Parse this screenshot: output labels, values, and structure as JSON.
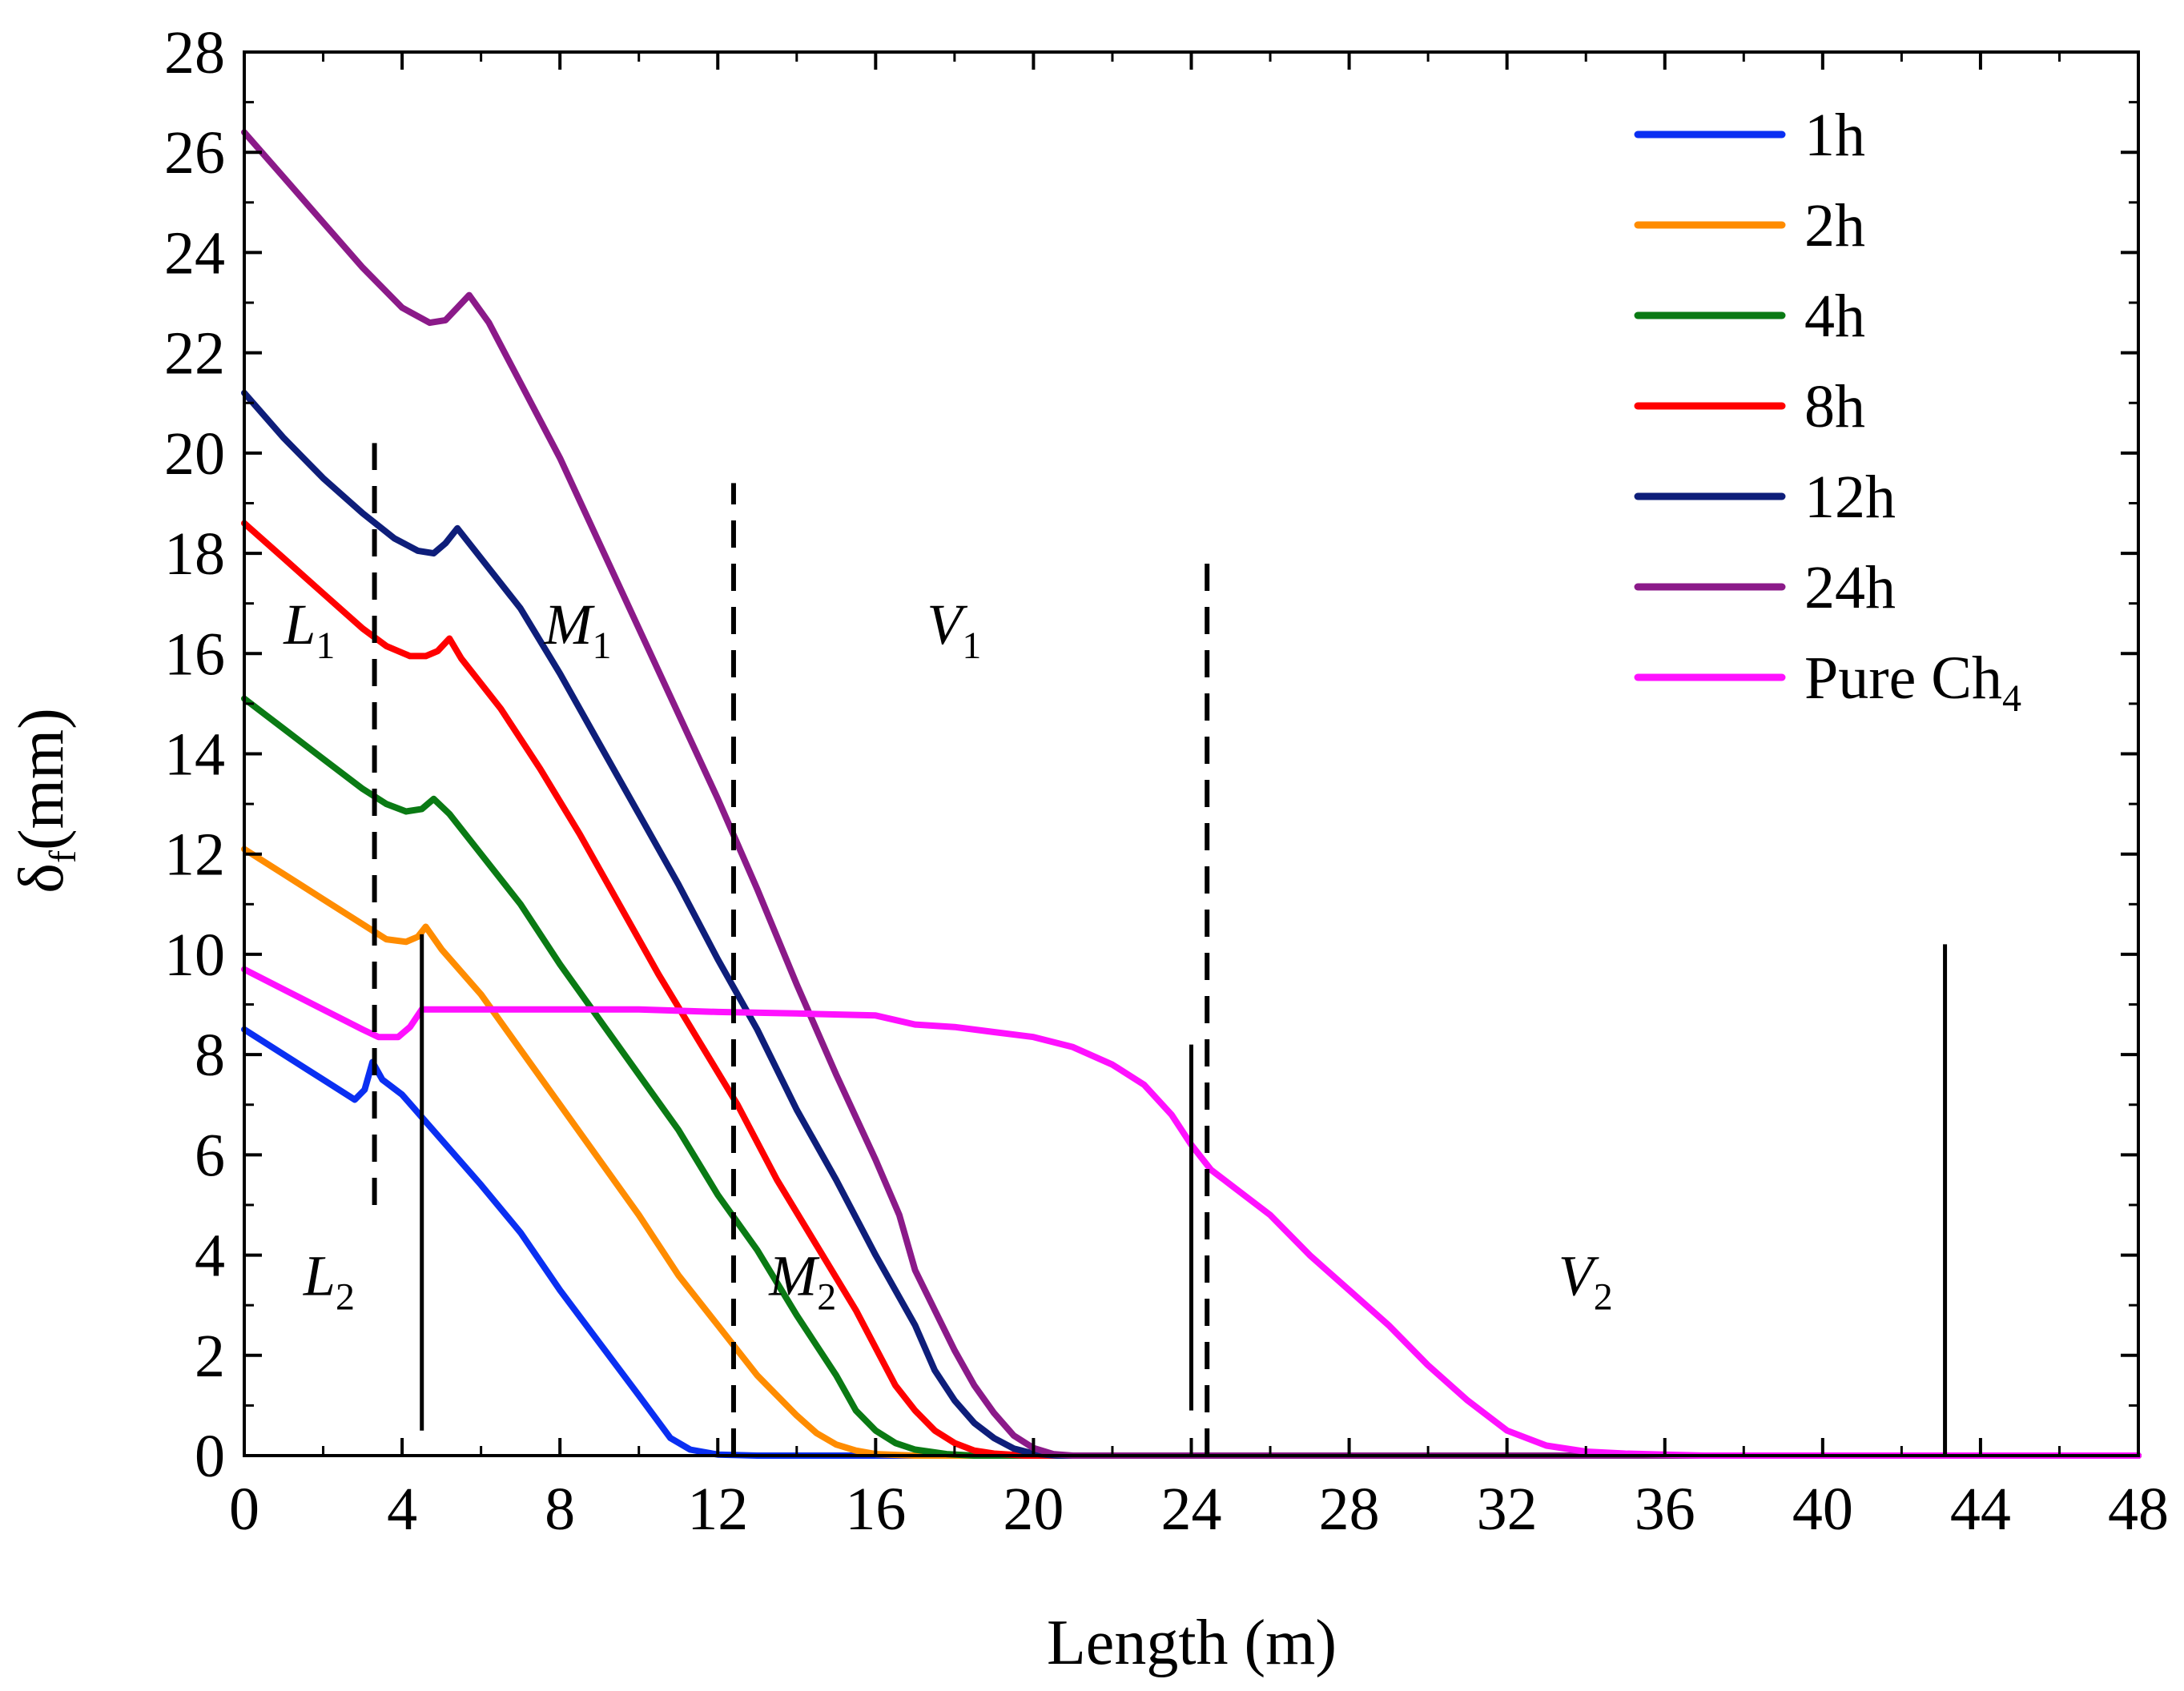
{
  "chart_data": {
    "type": "line",
    "title": "",
    "xlabel": "Length (m)",
    "ylabel_main": "δ",
    "ylabel_sub": "f",
    "ylabel_unit": "(mm)",
    "xlim": [
      0,
      48
    ],
    "ylim": [
      0,
      28
    ],
    "xticks": [
      0,
      4,
      8,
      12,
      16,
      20,
      24,
      28,
      32,
      36,
      40,
      44,
      48
    ],
    "yticks": [
      0,
      2,
      4,
      6,
      8,
      10,
      12,
      14,
      16,
      18,
      20,
      22,
      24,
      26,
      28
    ],
    "grid": false,
    "legend_position": "top-right",
    "series": [
      {
        "name": "1h",
        "label_main": "1h",
        "label_sub": "",
        "color": "#0a2ff2",
        "points": [
          [
            0,
            8.5
          ],
          [
            1,
            8.0
          ],
          [
            2,
            7.5
          ],
          [
            2.8,
            7.1
          ],
          [
            3.05,
            7.3
          ],
          [
            3.25,
            7.85
          ],
          [
            3.5,
            7.5
          ],
          [
            4,
            7.2
          ],
          [
            5,
            6.3
          ],
          [
            6,
            5.4
          ],
          [
            7,
            4.45
          ],
          [
            8,
            3.3
          ],
          [
            9,
            2.25
          ],
          [
            10,
            1.2
          ],
          [
            10.8,
            0.35
          ],
          [
            11.3,
            0.12
          ],
          [
            12,
            0.02
          ],
          [
            13,
            0
          ],
          [
            16,
            0
          ],
          [
            48,
            0
          ]
        ]
      },
      {
        "name": "2h",
        "label_main": "2h",
        "label_sub": "",
        "color": "#ff8c00",
        "points": [
          [
            0,
            12.1
          ],
          [
            1,
            11.6
          ],
          [
            2,
            11.1
          ],
          [
            3,
            10.6
          ],
          [
            3.6,
            10.3
          ],
          [
            4.1,
            10.25
          ],
          [
            4.4,
            10.35
          ],
          [
            4.6,
            10.55
          ],
          [
            5,
            10.1
          ],
          [
            6,
            9.2
          ],
          [
            7,
            8.1
          ],
          [
            8,
            7.0
          ],
          [
            9,
            5.9
          ],
          [
            10,
            4.8
          ],
          [
            11,
            3.6
          ],
          [
            12,
            2.6
          ],
          [
            13,
            1.6
          ],
          [
            14,
            0.8
          ],
          [
            14.5,
            0.45
          ],
          [
            15,
            0.22
          ],
          [
            15.5,
            0.1
          ],
          [
            16,
            0.03
          ],
          [
            17,
            0
          ],
          [
            48,
            0
          ]
        ]
      },
      {
        "name": "4h",
        "label_main": "4h",
        "label_sub": "",
        "color": "#0a7a14",
        "points": [
          [
            0,
            15.1
          ],
          [
            1,
            14.5
          ],
          [
            2,
            13.9
          ],
          [
            3,
            13.3
          ],
          [
            3.6,
            13.0
          ],
          [
            4.1,
            12.85
          ],
          [
            4.5,
            12.9
          ],
          [
            4.8,
            13.1
          ],
          [
            5.2,
            12.8
          ],
          [
            6,
            12.0
          ],
          [
            7,
            11.0
          ],
          [
            8,
            9.8
          ],
          [
            9,
            8.7
          ],
          [
            10,
            7.6
          ],
          [
            11,
            6.5
          ],
          [
            12,
            5.2
          ],
          [
            13,
            4.1
          ],
          [
            14,
            2.8
          ],
          [
            15,
            1.6
          ],
          [
            15.5,
            0.9
          ],
          [
            16,
            0.5
          ],
          [
            16.5,
            0.25
          ],
          [
            17,
            0.12
          ],
          [
            17.8,
            0.03
          ],
          [
            18.5,
            0
          ],
          [
            48,
            0
          ]
        ]
      },
      {
        "name": "8h",
        "label_main": "8h",
        "label_sub": "",
        "color": "#ff0000",
        "points": [
          [
            0,
            18.6
          ],
          [
            1,
            17.9
          ],
          [
            2,
            17.2
          ],
          [
            3,
            16.5
          ],
          [
            3.6,
            16.15
          ],
          [
            4.2,
            15.95
          ],
          [
            4.6,
            15.95
          ],
          [
            4.9,
            16.05
          ],
          [
            5.2,
            16.3
          ],
          [
            5.5,
            15.9
          ],
          [
            6.5,
            14.9
          ],
          [
            7.5,
            13.7
          ],
          [
            8.5,
            12.4
          ],
          [
            9.5,
            11.0
          ],
          [
            10.5,
            9.6
          ],
          [
            11.5,
            8.3
          ],
          [
            12.5,
            7.0
          ],
          [
            13.5,
            5.5
          ],
          [
            14.5,
            4.2
          ],
          [
            15.5,
            2.9
          ],
          [
            16.5,
            1.4
          ],
          [
            17,
            0.9
          ],
          [
            17.5,
            0.5
          ],
          [
            18,
            0.25
          ],
          [
            18.5,
            0.1
          ],
          [
            19,
            0.04
          ],
          [
            19.8,
            0
          ],
          [
            48,
            0
          ]
        ]
      },
      {
        "name": "12h",
        "label_main": "12h",
        "label_sub": "",
        "color": "#0e1e7a",
        "points": [
          [
            0,
            21.2
          ],
          [
            1,
            20.3
          ],
          [
            2,
            19.5
          ],
          [
            3,
            18.8
          ],
          [
            3.8,
            18.3
          ],
          [
            4.4,
            18.05
          ],
          [
            4.8,
            18.0
          ],
          [
            5.1,
            18.2
          ],
          [
            5.4,
            18.5
          ],
          [
            5.8,
            18.1
          ],
          [
            7,
            16.9
          ],
          [
            8,
            15.6
          ],
          [
            9,
            14.2
          ],
          [
            10,
            12.8
          ],
          [
            11,
            11.4
          ],
          [
            12,
            9.9
          ],
          [
            13,
            8.5
          ],
          [
            14,
            6.9
          ],
          [
            15,
            5.5
          ],
          [
            16,
            4.0
          ],
          [
            17,
            2.6
          ],
          [
            17.5,
            1.7
          ],
          [
            18,
            1.1
          ],
          [
            18.5,
            0.65
          ],
          [
            19,
            0.35
          ],
          [
            19.5,
            0.14
          ],
          [
            20,
            0.04
          ],
          [
            20.6,
            0
          ],
          [
            48,
            0
          ]
        ]
      },
      {
        "name": "24h",
        "label_main": "24h",
        "label_sub": "",
        "color": "#8b1a89",
        "points": [
          [
            0,
            26.4
          ],
          [
            1,
            25.5
          ],
          [
            2,
            24.6
          ],
          [
            3,
            23.7
          ],
          [
            4,
            22.9
          ],
          [
            4.7,
            22.6
          ],
          [
            5.1,
            22.65
          ],
          [
            5.4,
            22.9
          ],
          [
            5.7,
            23.15
          ],
          [
            6.2,
            22.6
          ],
          [
            7,
            21.4
          ],
          [
            8,
            19.9
          ],
          [
            9,
            18.2
          ],
          [
            10,
            16.5
          ],
          [
            11,
            14.8
          ],
          [
            12,
            13.1
          ],
          [
            13,
            11.3
          ],
          [
            14,
            9.4
          ],
          [
            15,
            7.6
          ],
          [
            16,
            5.9
          ],
          [
            16.6,
            4.8
          ],
          [
            17,
            3.7
          ],
          [
            17.5,
            2.9
          ],
          [
            18,
            2.1
          ],
          [
            18.5,
            1.4
          ],
          [
            19,
            0.85
          ],
          [
            19.5,
            0.4
          ],
          [
            20,
            0.15
          ],
          [
            20.5,
            0.03
          ],
          [
            21,
            0
          ],
          [
            48,
            0
          ]
        ]
      },
      {
        "name": "Pure Ch4",
        "label_main": "Pure Ch",
        "label_sub": "4",
        "color": "#ff11ff",
        "points": [
          [
            0,
            9.7
          ],
          [
            1,
            9.3
          ],
          [
            2,
            8.9
          ],
          [
            3,
            8.5
          ],
          [
            3.4,
            8.35
          ],
          [
            3.9,
            8.35
          ],
          [
            4.2,
            8.55
          ],
          [
            4.5,
            8.9
          ],
          [
            5,
            8.9
          ],
          [
            8,
            8.9
          ],
          [
            10,
            8.9
          ],
          [
            12,
            8.85
          ],
          [
            14,
            8.82
          ],
          [
            16,
            8.78
          ],
          [
            17,
            8.6
          ],
          [
            18,
            8.55
          ],
          [
            19,
            8.45
          ],
          [
            20,
            8.35
          ],
          [
            21,
            8.15
          ],
          [
            22,
            7.8
          ],
          [
            22.8,
            7.4
          ],
          [
            23.5,
            6.8
          ],
          [
            24,
            6.2
          ],
          [
            24.5,
            5.7
          ],
          [
            25,
            5.4
          ],
          [
            26,
            4.8
          ],
          [
            27,
            4.0
          ],
          [
            28,
            3.3
          ],
          [
            29,
            2.6
          ],
          [
            30,
            1.8
          ],
          [
            31,
            1.1
          ],
          [
            32,
            0.5
          ],
          [
            33,
            0.2
          ],
          [
            34,
            0.08
          ],
          [
            35,
            0.04
          ],
          [
            36,
            0.02
          ],
          [
            37,
            0
          ],
          [
            48,
            0
          ]
        ]
      }
    ],
    "reference_lines": [
      {
        "x": 3.3,
        "y0": 5.0,
        "y1": 20.2,
        "style": "dashed"
      },
      {
        "x": 12.4,
        "y0": 0.0,
        "y1": 19.4,
        "style": "dashed"
      },
      {
        "x": 24.4,
        "y0": 0.0,
        "y1": 17.8,
        "style": "dashed"
      },
      {
        "x": 4.5,
        "y0": 0.5,
        "y1": 10.4,
        "style": "solid"
      },
      {
        "x": 24.0,
        "y0": 0.9,
        "y1": 8.2,
        "style": "solid"
      },
      {
        "x": 43.1,
        "y0": 0.0,
        "y1": 10.2,
        "style": "solid"
      }
    ],
    "annotations": [
      {
        "name": "region-label-l1",
        "main": "L",
        "sub": "1",
        "x": 1.0,
        "y": 16.2
      },
      {
        "name": "region-label-m1",
        "main": "M",
        "sub": "1",
        "x": 7.6,
        "y": 16.2
      },
      {
        "name": "region-label-v1",
        "main": "V",
        "sub": "1",
        "x": 17.3,
        "y": 16.2
      },
      {
        "name": "region-label-l2",
        "main": "L",
        "sub": "2",
        "x": 1.5,
        "y": 3.2
      },
      {
        "name": "region-label-m2",
        "main": "M",
        "sub": "2",
        "x": 13.3,
        "y": 3.2
      },
      {
        "name": "region-label-v2",
        "main": "V",
        "sub": "2",
        "x": 33.3,
        "y": 3.2
      }
    ]
  }
}
